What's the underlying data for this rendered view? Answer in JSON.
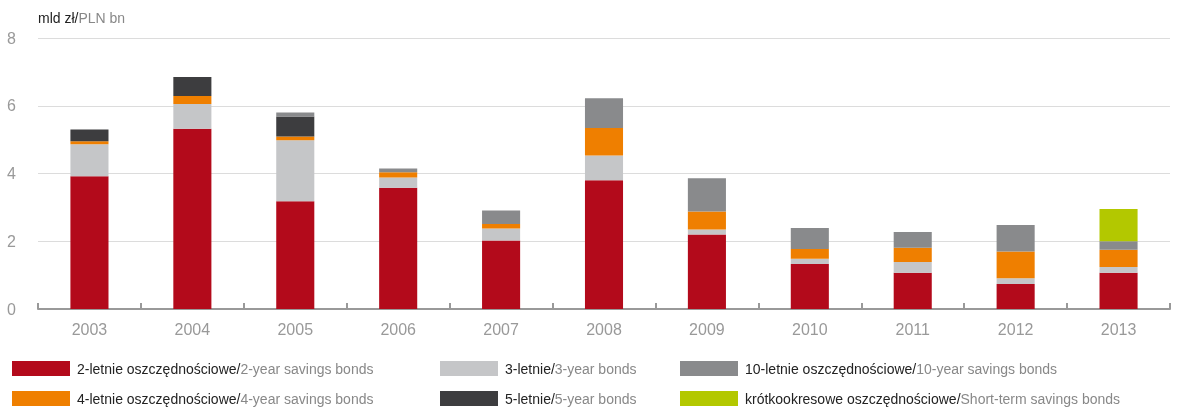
{
  "chart_data": {
    "type": "bar",
    "stacked": true,
    "ylabel": "mld zł/PLN bn",
    "categories": [
      "2003",
      "2004",
      "2005",
      "2006",
      "2007",
      "2008",
      "2009",
      "2010",
      "2011",
      "2012",
      "2013"
    ],
    "ylim": [
      0,
      8
    ],
    "yticks": [
      0,
      2,
      4,
      6,
      8
    ],
    "grid": "y",
    "legend": "bottom",
    "series": [
      {
        "name": "2-letnie oszczędnościowe/2-year savings bonds",
        "color": "#b30a1b",
        "values": [
          3.92,
          5.32,
          3.18,
          3.58,
          2.02,
          3.8,
          2.2,
          1.33,
          1.07,
          0.74,
          1.07
        ]
      },
      {
        "name": "3-letnie/3-year bonds",
        "color": "#c5c6c8",
        "values": [
          0.94,
          0.73,
          1.8,
          0.3,
          0.36,
          0.73,
          0.15,
          0.15,
          0.32,
          0.17,
          0.17
        ]
      },
      {
        "name": "4-letnie oszczędnościowe/4-year savings bonds",
        "color": "#ef7f00",
        "values": [
          0.09,
          0.24,
          0.11,
          0.16,
          0.13,
          0.81,
          0.53,
          0.29,
          0.42,
          0.79,
          0.51
        ]
      },
      {
        "name": "5-letnie/5-year bonds",
        "color": "#3d3d3f",
        "values": [
          0.35,
          0.56,
          0.59,
          null,
          null,
          null,
          null,
          null,
          null,
          null,
          null
        ]
      },
      {
        "name": "10-letnie oszczędnościowe/10-year savings bonds",
        "color": "#898a8c",
        "values": [
          null,
          null,
          0.12,
          0.11,
          0.4,
          0.88,
          0.98,
          0.62,
          0.46,
          0.78,
          0.25
        ]
      },
      {
        "name": "krótkookresowe oszczędnościowe/Short-term savings bonds",
        "color": "#b3c800",
        "values": [
          null,
          null,
          null,
          null,
          null,
          null,
          null,
          null,
          null,
          null,
          0.95
        ]
      }
    ]
  }
}
